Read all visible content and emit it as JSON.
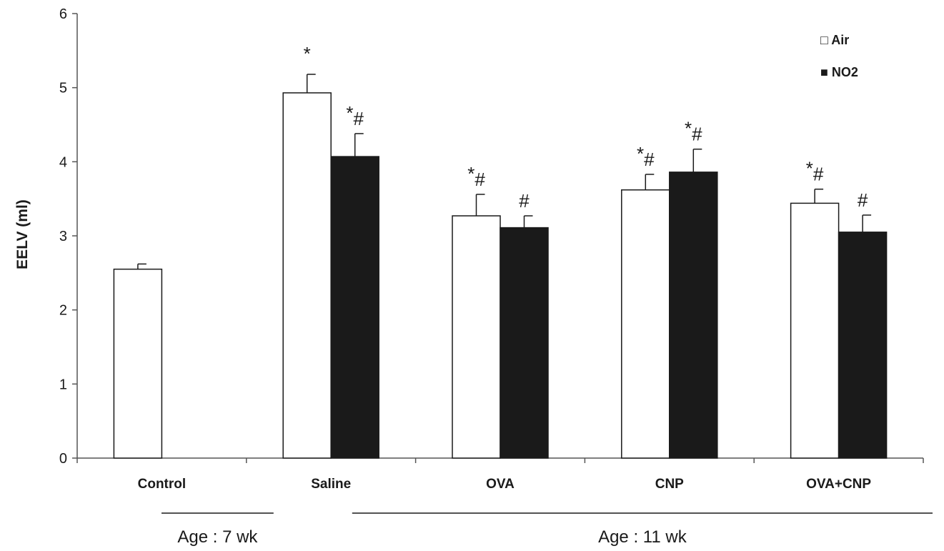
{
  "chart_data": {
    "type": "bar",
    "title": "",
    "xlabel": "",
    "ylabel": "EELV (ml)",
    "ylim": [
      0,
      6
    ],
    "yticks": [
      "0",
      "1",
      "2",
      "3",
      "4",
      "5",
      "6"
    ],
    "grid": false,
    "legend_position": "top-right",
    "categories": [
      "Control",
      "Saline",
      "OVA",
      "CNP",
      "OVA+CNP"
    ],
    "series": [
      {
        "name": "Air",
        "legend_label": "□ Air",
        "color": "#ffffff",
        "values": [
          2.55,
          4.93,
          3.27,
          3.62,
          3.44
        ],
        "errors": [
          0.07,
          0.25,
          0.29,
          0.21,
          0.19
        ],
        "annotations": [
          "",
          "*",
          "*#",
          "*#",
          "*#"
        ]
      },
      {
        "name": "NO2",
        "legend_label": "■ NO2",
        "color": "#1a1a1a",
        "values": [
          null,
          4.07,
          3.11,
          3.86,
          3.05
        ],
        "errors": [
          null,
          0.31,
          0.16,
          0.31,
          0.23
        ],
        "annotations": [
          "",
          "*#",
          "#",
          "*#",
          "#"
        ]
      }
    ],
    "group_labels": [
      {
        "text": "Age : 7 wk",
        "categories": [
          "Control"
        ]
      },
      {
        "text": "Age : 11 wk",
        "categories": [
          "Saline",
          "OVA",
          "CNP",
          "OVA+CNP"
        ]
      }
    ]
  }
}
